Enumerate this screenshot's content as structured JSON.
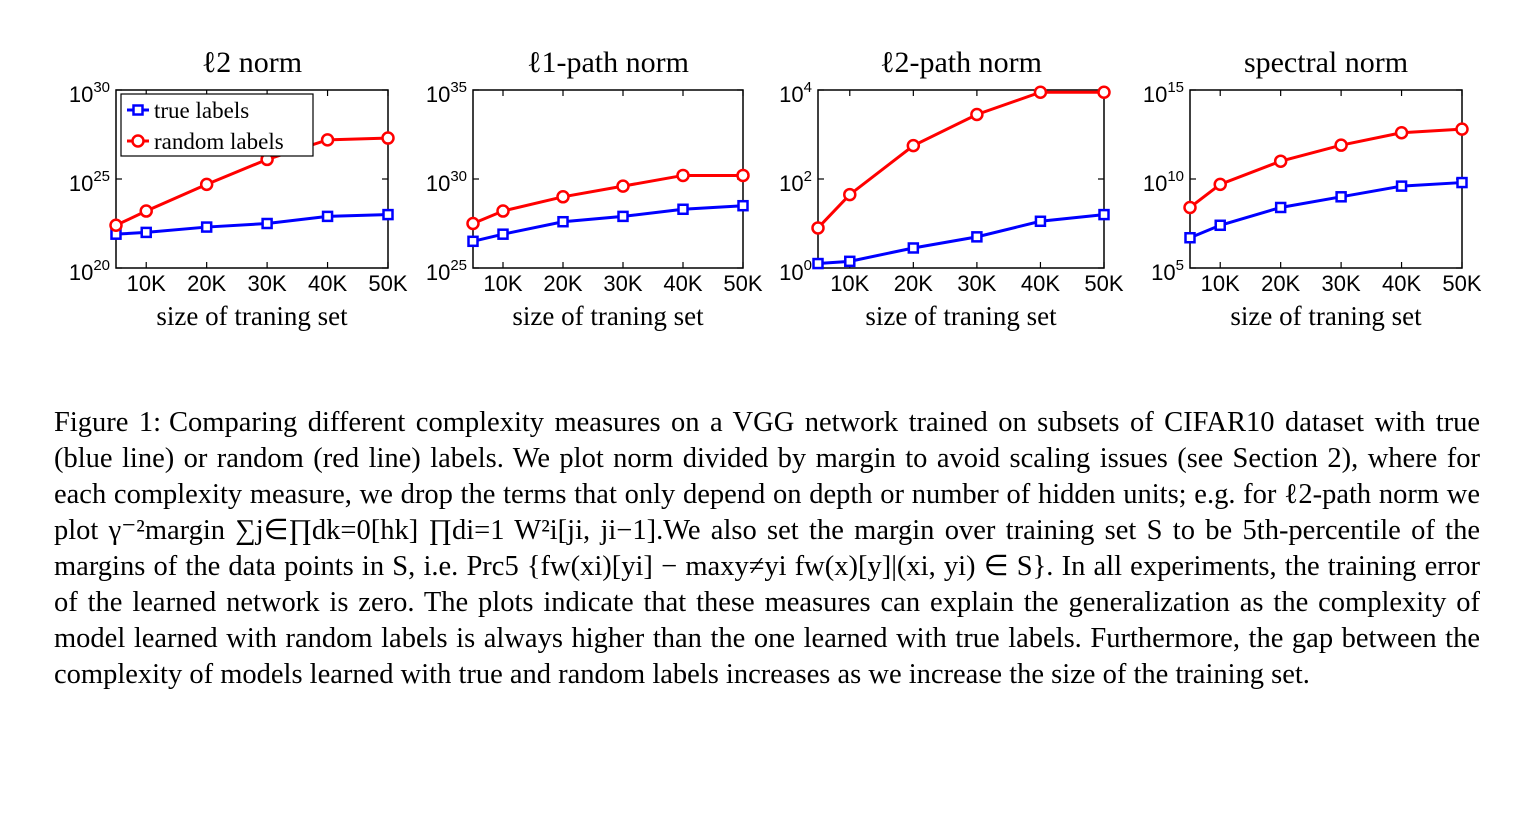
{
  "chart_data": [
    {
      "type": "line",
      "title": "ℓ2 norm",
      "xlabel": "size of traning set",
      "ylabel": "",
      "y_scale": "log",
      "ylim_exp": [
        20,
        30
      ],
      "ytick_labels": [
        {
          "base": "10",
          "exp": "20"
        },
        {
          "base": "10",
          "exp": "25"
        },
        {
          "base": "10",
          "exp": "30"
        }
      ],
      "x": [
        5000,
        10000,
        20000,
        30000,
        40000,
        50000
      ],
      "xlim": [
        5000,
        50000
      ],
      "xtick_values": [
        10000,
        20000,
        30000,
        40000,
        50000
      ],
      "xtick_labels": [
        "10K",
        "20K",
        "30K",
        "40K",
        "50K"
      ],
      "legend": {
        "placement": "top-left",
        "entries": [
          "true labels",
          "random labels"
        ]
      },
      "series": [
        {
          "name": "true labels",
          "color": "#0000ff",
          "marker": "square",
          "log10_values": [
            21.9,
            22.0,
            22.3,
            22.5,
            22.9,
            23.0
          ]
        },
        {
          "name": "random labels",
          "color": "#ff0000",
          "marker": "circle",
          "log10_values": [
            22.4,
            23.2,
            24.7,
            26.1,
            27.2,
            27.3
          ]
        }
      ]
    },
    {
      "type": "line",
      "title": "ℓ1-path norm",
      "xlabel": "size of traning set",
      "ylabel": "",
      "y_scale": "log",
      "ylim_exp": [
        25,
        35
      ],
      "ytick_labels": [
        {
          "base": "10",
          "exp": "25"
        },
        {
          "base": "10",
          "exp": "30"
        },
        {
          "base": "10",
          "exp": "35"
        }
      ],
      "x": [
        5000,
        10000,
        20000,
        30000,
        40000,
        50000
      ],
      "xlim": [
        5000,
        50000
      ],
      "xtick_values": [
        10000,
        20000,
        30000,
        40000,
        50000
      ],
      "xtick_labels": [
        "10K",
        "20K",
        "30K",
        "40K",
        "50K"
      ],
      "series": [
        {
          "name": "true labels",
          "color": "#0000ff",
          "marker": "square",
          "log10_values": [
            26.5,
            26.9,
            27.6,
            27.9,
            28.3,
            28.5
          ]
        },
        {
          "name": "random labels",
          "color": "#ff0000",
          "marker": "circle",
          "log10_values": [
            27.5,
            28.2,
            29.0,
            29.6,
            30.2,
            30.2
          ]
        }
      ]
    },
    {
      "type": "line",
      "title": "ℓ2-path norm",
      "xlabel": "size of traning set",
      "ylabel": "",
      "y_scale": "log",
      "ylim_exp": [
        0,
        4
      ],
      "ytick_labels": [
        {
          "base": "10",
          "exp": "0"
        },
        {
          "base": "10",
          "exp": "2"
        },
        {
          "base": "10",
          "exp": "4"
        }
      ],
      "x": [
        5000,
        10000,
        20000,
        30000,
        40000,
        50000
      ],
      "xlim": [
        5000,
        50000
      ],
      "xtick_values": [
        10000,
        20000,
        30000,
        40000,
        50000
      ],
      "xtick_labels": [
        "10K",
        "20K",
        "30K",
        "40K",
        "50K"
      ],
      "series": [
        {
          "name": "true labels",
          "color": "#0000ff",
          "marker": "square",
          "log10_values": [
            0.1,
            0.15,
            0.45,
            0.7,
            1.05,
            1.2
          ]
        },
        {
          "name": "random labels",
          "color": "#ff0000",
          "marker": "circle",
          "log10_values": [
            0.9,
            1.65,
            2.75,
            3.45,
            3.95,
            3.95
          ]
        }
      ]
    },
    {
      "type": "line",
      "title": "spectral norm",
      "xlabel": "size of traning set",
      "ylabel": "",
      "y_scale": "log",
      "ylim_exp": [
        5,
        15
      ],
      "ytick_labels": [
        {
          "base": "10",
          "exp": "5"
        },
        {
          "base": "10",
          "exp": "10"
        },
        {
          "base": "10",
          "exp": "15"
        }
      ],
      "x": [
        5000,
        10000,
        20000,
        30000,
        40000,
        50000
      ],
      "xlim": [
        5000,
        50000
      ],
      "xtick_values": [
        10000,
        20000,
        30000,
        40000,
        50000
      ],
      "xtick_labels": [
        "10K",
        "20K",
        "30K",
        "40K",
        "50K"
      ],
      "series": [
        {
          "name": "true labels",
          "color": "#0000ff",
          "marker": "square",
          "log10_values": [
            6.7,
            7.4,
            8.4,
            9.0,
            9.6,
            9.8
          ]
        },
        {
          "name": "random labels",
          "color": "#ff0000",
          "marker": "circle",
          "log10_values": [
            8.4,
            9.7,
            11.0,
            11.9,
            12.6,
            12.8
          ]
        }
      ]
    }
  ],
  "caption": {
    "label": "Figure 1:",
    "lines": [
      "Comparing different complexity measures on a VGG network trained on subsets of CIFAR10 dataset with true (blue line) or random (red line) labels. We plot norm divided by margin to avoid scaling issues (see Section 2), where for each complexity measure, we drop the terms that only depend on depth or number of hidden units; e.g. for ℓ2-path norm we plot γ⁻²margin ∑j∈∏dk=0[hk] ∏di=1 W²i[ji, ji−1].We also set the margin over training set S to be 5th-percentile of the margins of the data points in S, i.e. Prc5 {fw(xi)[yi] − maxy≠yi fw(x)[y]|(xi, yi) ∈ S}. In all experiments, the training error of the learned network is zero. The plots indicate that these measures can explain the generalization as the complexity of model learned with random labels is always higher than the one learned with true labels. Furthermore, the gap between the complexity of models learned with true and random labels increases as we increase the size of the training set."
    ]
  }
}
